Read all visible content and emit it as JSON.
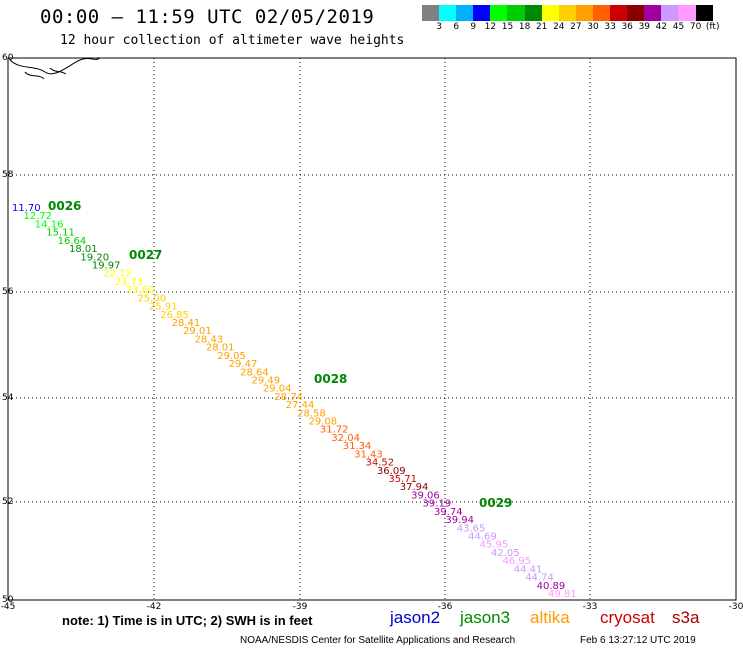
{
  "header": {
    "title": "00:00 – 11:59 UTC 02/05/2019",
    "subtitle": "12 hour collection of altimeter wave heights"
  },
  "colorbar": {
    "colors": [
      "#808080",
      "#00ffff",
      "#00b0ff",
      "#0000ff",
      "#00ff00",
      "#00cc00",
      "#008800",
      "#ffff00",
      "#ffd000",
      "#ffa000",
      "#ff6000",
      "#cc0000",
      "#880000",
      "#a000a0",
      "#cc99ff",
      "#ff99ff",
      "#000000"
    ],
    "labels": [
      "3",
      "6",
      "9",
      "12",
      "15",
      "18",
      "21",
      "24",
      "27",
      "30",
      "33",
      "36",
      "39",
      "42",
      "45",
      "70",
      "(ft)"
    ]
  },
  "map": {
    "lon_ticks": [
      "-45",
      "-42",
      "-39",
      "-36",
      "-33",
      "-30"
    ],
    "lat_ticks": [
      "60",
      "58",
      "56",
      "54",
      "52",
      "50"
    ],
    "track_time_labels": [
      "0026",
      "0027",
      "0028",
      "0029"
    ],
    "swh_values": [
      "11.70",
      "12.72",
      "14.16",
      "15.11",
      "16.64",
      "18.01",
      "19.20",
      "19.97",
      "22.12",
      "23.73",
      "23.60",
      "25.00",
      "25.91",
      "26.85",
      "28.41",
      "29.01",
      "28.43",
      "28.01",
      "29.05",
      "29.47",
      "28.64",
      "29.49",
      "29.04",
      "28.74",
      "27.44",
      "28.58",
      "29.08",
      "31.72",
      "32.04",
      "31.34",
      "31.43",
      "34.52",
      "36.09",
      "35.71",
      "37.94",
      "39.06",
      "39.19",
      "39.74",
      "39.94",
      "43.65",
      "44.69",
      "45.95",
      "42.05",
      "46.95",
      "44.41",
      "44.74",
      "40.89",
      "49.81"
    ]
  },
  "footer": {
    "note": "note: 1) Time is in UTC; 2) SWH is in feet",
    "legend": [
      {
        "label": "jason2",
        "color": "#0000cc"
      },
      {
        "label": "jason3",
        "color": "#008800"
      },
      {
        "label": "altika",
        "color": "#ff9900"
      },
      {
        "label": "cryosat",
        "color": "#cc0000"
      },
      {
        "label": "s3a",
        "color": "#aa0000"
      }
    ],
    "credit": "NOAA/NESDIS Center for Satellite Applications and Research",
    "timestamp": "Feb  6 13:27:12 UTC 2019"
  }
}
